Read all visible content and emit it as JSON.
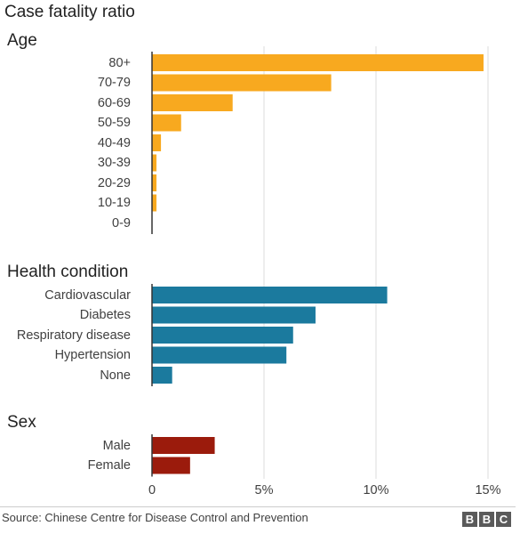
{
  "chart_data": {
    "type": "bar",
    "orientation": "horizontal",
    "title": "Case fatality ratio",
    "x_unit": "%",
    "xlim": [
      0,
      15
    ],
    "xticks": [
      0,
      5,
      10,
      15
    ],
    "xtick_labels": [
      "0",
      "5%",
      "10%",
      "15%"
    ],
    "grid": true,
    "groups": [
      {
        "name": "Age",
        "color": "#F8A91F",
        "categories": [
          "80+",
          "70-79",
          "60-69",
          "50-59",
          "40-49",
          "30-39",
          "20-29",
          "10-19",
          "0-9"
        ],
        "values": [
          14.8,
          8.0,
          3.6,
          1.3,
          0.4,
          0.2,
          0.2,
          0.2,
          0.0
        ]
      },
      {
        "name": "Health condition",
        "color": "#1B7A9E",
        "categories": [
          "Cardiovascular",
          "Diabetes",
          "Respiratory disease",
          "Hypertension",
          "None"
        ],
        "values": [
          10.5,
          7.3,
          6.3,
          6.0,
          0.9
        ]
      },
      {
        "name": "Sex",
        "color": "#9B1B0C",
        "categories": [
          "Male",
          "Female"
        ],
        "values": [
          2.8,
          1.7
        ]
      }
    ]
  },
  "source": "Source: Chinese Centre for Disease Control and Prevention",
  "logo": [
    "B",
    "B",
    "C"
  ]
}
